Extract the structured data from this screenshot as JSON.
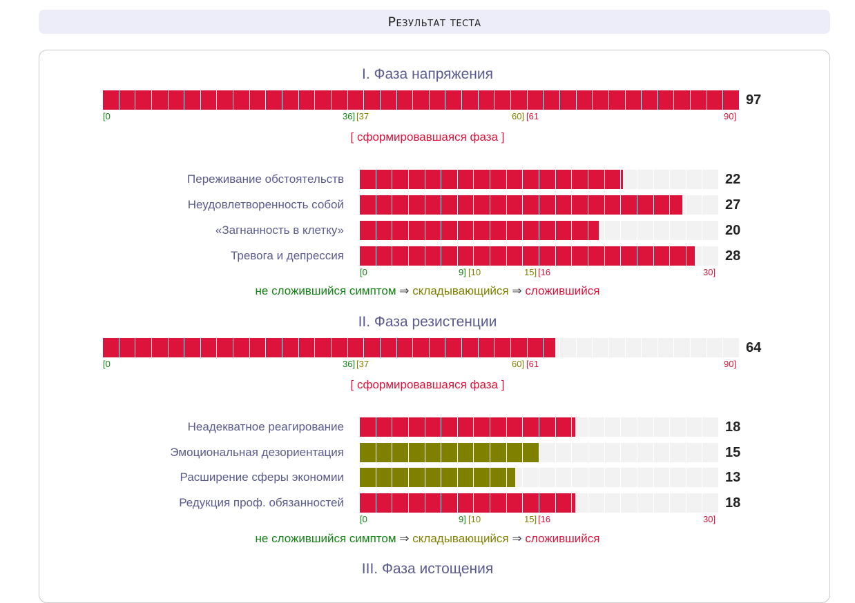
{
  "header": {
    "title": "Результат теста"
  },
  "colors": {
    "red": "#dc143c",
    "olive": "#808000",
    "green": "#138113",
    "empty": "#f2f2f2"
  },
  "phases": [
    {
      "title": "I. Фаза напряжения",
      "value": 97,
      "max": 90,
      "bar_value": 97,
      "status": "[ сформировавшаяся фаза ]",
      "scale": {
        "start": "[0",
        "b1_end": "36]",
        "b2_start": "[37",
        "b2_end": "60]",
        "b3_start": "[61",
        "end": "90]"
      },
      "symptoms": [
        {
          "label": "Переживание обстоятельств",
          "value": 22,
          "level": "red"
        },
        {
          "label": "Неудовлетворенность собой",
          "value": 27,
          "level": "red"
        },
        {
          "label": "«Загнанность в клетку»",
          "value": 20,
          "level": "red"
        },
        {
          "label": "Тревога и депрессия",
          "value": 28,
          "level": "red"
        }
      ],
      "symptom_scale": {
        "start": "[0",
        "b1_end": "9]",
        "b2_start": "[10",
        "b2_end": "15]",
        "b3_start": "[16",
        "end": "30]"
      },
      "legend": {
        "not_formed": "не сложившийся симптом",
        "forming": "складывающийся",
        "formed": "сложившийся",
        "arrow": "⇒"
      }
    },
    {
      "title": "II. Фаза резистенции",
      "value": 64,
      "max": 90,
      "bar_value": 64,
      "status": "[ сформировавшаяся фаза ]",
      "scale": {
        "start": "[0",
        "b1_end": "36]",
        "b2_start": "[37",
        "b2_end": "60]",
        "b3_start": "[61",
        "end": "90]"
      },
      "symptoms": [
        {
          "label": "Неадекватное реагирование",
          "value": 18,
          "level": "red"
        },
        {
          "label": "Эмоциональная дезориентация",
          "value": 15,
          "level": "olive"
        },
        {
          "label": "Расширение сферы экономии",
          "value": 13,
          "level": "olive"
        },
        {
          "label": "Редукция проф. обязанностей",
          "value": 18,
          "level": "red"
        }
      ],
      "symptom_scale": {
        "start": "[0",
        "b1_end": "9]",
        "b2_start": "[10",
        "b2_end": "15]",
        "b3_start": "[16",
        "end": "30]"
      },
      "legend": {
        "not_formed": "не сложившийся симптом",
        "forming": "складывающийся",
        "formed": "сложившийся",
        "arrow": "⇒"
      }
    },
    {
      "title": "III. Фаза истощения"
    }
  ]
}
